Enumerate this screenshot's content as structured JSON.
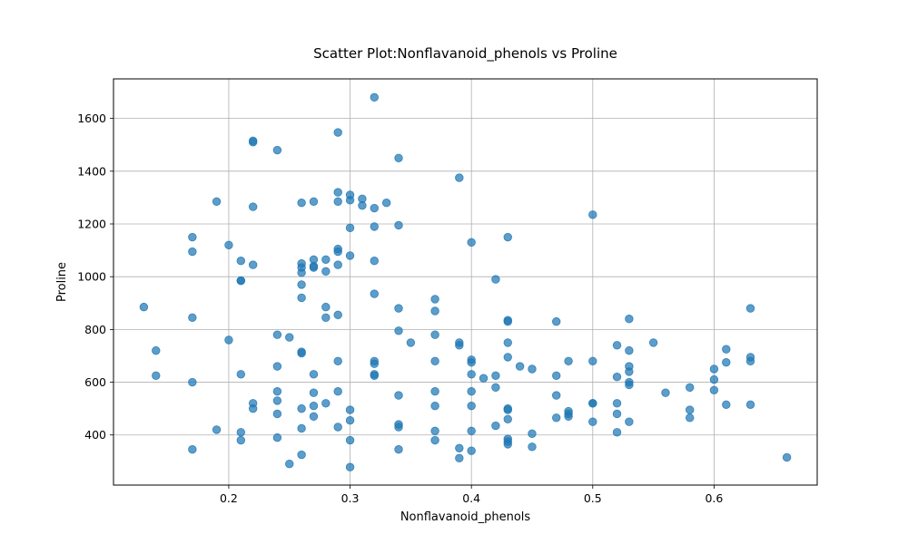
{
  "chart_data": {
    "type": "scatter",
    "title": "Scatter Plot:Nonflavanoid_phenols vs Proline",
    "xlabel": "Nonflavanoid_phenols",
    "ylabel": "Proline",
    "xlim": [
      0.105,
      0.685
    ],
    "ylim": [
      210,
      1750
    ],
    "xticks": [
      0.2,
      0.3,
      0.4,
      0.5,
      0.6
    ],
    "xtick_labels": [
      "0.2",
      "0.3",
      "0.4",
      "0.5",
      "0.6"
    ],
    "yticks": [
      400,
      600,
      800,
      1000,
      1200,
      1400,
      1600
    ],
    "ytick_labels": [
      "400",
      "600",
      "800",
      "1000",
      "1200",
      "1400",
      "1600"
    ],
    "grid": true,
    "point_color": "#1f77b4",
    "points": [
      [
        0.32,
        1680
      ],
      [
        0.22,
        1515
      ],
      [
        0.22,
        1510
      ],
      [
        0.24,
        1480
      ],
      [
        0.29,
        1547
      ],
      [
        0.34,
        1450
      ],
      [
        0.39,
        1375
      ],
      [
        0.19,
        1285
      ],
      [
        0.22,
        1265
      ],
      [
        0.26,
        1280
      ],
      [
        0.27,
        1285
      ],
      [
        0.29,
        1320
      ],
      [
        0.29,
        1285
      ],
      [
        0.3,
        1310
      ],
      [
        0.3,
        1290
      ],
      [
        0.31,
        1295
      ],
      [
        0.31,
        1270
      ],
      [
        0.32,
        1260
      ],
      [
        0.33,
        1280
      ],
      [
        0.5,
        1235
      ],
      [
        0.3,
        1185
      ],
      [
        0.32,
        1190
      ],
      [
        0.34,
        1195
      ],
      [
        0.17,
        1150
      ],
      [
        0.2,
        1120
      ],
      [
        0.17,
        1095
      ],
      [
        0.43,
        1150
      ],
      [
        0.4,
        1130
      ],
      [
        0.21,
        1060
      ],
      [
        0.22,
        1045
      ],
      [
        0.26,
        1050
      ],
      [
        0.26,
        1035
      ],
      [
        0.26,
        1015
      ],
      [
        0.27,
        1065
      ],
      [
        0.27,
        1040
      ],
      [
        0.27,
        1035
      ],
      [
        0.28,
        1065
      ],
      [
        0.28,
        1020
      ],
      [
        0.29,
        1105
      ],
      [
        0.29,
        1095
      ],
      [
        0.29,
        1045
      ],
      [
        0.3,
        1080
      ],
      [
        0.32,
        1060
      ],
      [
        0.21,
        985
      ],
      [
        0.21,
        985
      ],
      [
        0.42,
        990
      ],
      [
        0.26,
        970
      ],
      [
        0.26,
        920
      ],
      [
        0.32,
        935
      ],
      [
        0.37,
        915
      ],
      [
        0.13,
        885
      ],
      [
        0.17,
        845
      ],
      [
        0.28,
        885
      ],
      [
        0.28,
        845
      ],
      [
        0.29,
        855
      ],
      [
        0.34,
        880
      ],
      [
        0.37,
        870
      ],
      [
        0.43,
        835
      ],
      [
        0.43,
        830
      ],
      [
        0.47,
        830
      ],
      [
        0.53,
        840
      ],
      [
        0.63,
        880
      ],
      [
        0.14,
        720
      ],
      [
        0.2,
        760
      ],
      [
        0.24,
        780
      ],
      [
        0.25,
        770
      ],
      [
        0.26,
        715
      ],
      [
        0.26,
        710
      ],
      [
        0.34,
        795
      ],
      [
        0.35,
        750
      ],
      [
        0.37,
        780
      ],
      [
        0.39,
        750
      ],
      [
        0.39,
        740
      ],
      [
        0.43,
        750
      ],
      [
        0.52,
        740
      ],
      [
        0.53,
        720
      ],
      [
        0.55,
        750
      ],
      [
        0.61,
        725
      ],
      [
        0.14,
        625
      ],
      [
        0.17,
        600
      ],
      [
        0.21,
        630
      ],
      [
        0.24,
        660
      ],
      [
        0.27,
        630
      ],
      [
        0.29,
        680
      ],
      [
        0.32,
        680
      ],
      [
        0.32,
        670
      ],
      [
        0.32,
        630
      ],
      [
        0.32,
        625
      ],
      [
        0.37,
        680
      ],
      [
        0.4,
        685
      ],
      [
        0.4,
        675
      ],
      [
        0.4,
        630
      ],
      [
        0.41,
        615
      ],
      [
        0.42,
        625
      ],
      [
        0.43,
        695
      ],
      [
        0.44,
        660
      ],
      [
        0.45,
        650
      ],
      [
        0.47,
        625
      ],
      [
        0.48,
        680
      ],
      [
        0.5,
        680
      ],
      [
        0.52,
        620
      ],
      [
        0.53,
        660
      ],
      [
        0.53,
        640
      ],
      [
        0.53,
        600
      ],
      [
        0.53,
        590
      ],
      [
        0.56,
        560
      ],
      [
        0.58,
        580
      ],
      [
        0.6,
        650
      ],
      [
        0.6,
        610
      ],
      [
        0.6,
        570
      ],
      [
        0.61,
        675
      ],
      [
        0.63,
        695
      ],
      [
        0.63,
        680
      ],
      [
        0.22,
        520
      ],
      [
        0.22,
        500
      ],
      [
        0.24,
        565
      ],
      [
        0.24,
        530
      ],
      [
        0.24,
        480
      ],
      [
        0.26,
        500
      ],
      [
        0.27,
        560
      ],
      [
        0.27,
        510
      ],
      [
        0.27,
        470
      ],
      [
        0.28,
        520
      ],
      [
        0.29,
        565
      ],
      [
        0.3,
        495
      ],
      [
        0.3,
        455
      ],
      [
        0.34,
        550
      ],
      [
        0.37,
        565
      ],
      [
        0.37,
        510
      ],
      [
        0.4,
        565
      ],
      [
        0.4,
        510
      ],
      [
        0.42,
        580
      ],
      [
        0.43,
        500
      ],
      [
        0.43,
        495
      ],
      [
        0.43,
        460
      ],
      [
        0.47,
        550
      ],
      [
        0.47,
        465
      ],
      [
        0.48,
        490
      ],
      [
        0.48,
        480
      ],
      [
        0.48,
        470
      ],
      [
        0.5,
        520
      ],
      [
        0.5,
        520
      ],
      [
        0.5,
        450
      ],
      [
        0.52,
        520
      ],
      [
        0.52,
        480
      ],
      [
        0.53,
        450
      ],
      [
        0.58,
        495
      ],
      [
        0.58,
        465
      ],
      [
        0.61,
        515
      ],
      [
        0.63,
        515
      ],
      [
        0.17,
        345
      ],
      [
        0.19,
        420
      ],
      [
        0.21,
        410
      ],
      [
        0.21,
        380
      ],
      [
        0.24,
        390
      ],
      [
        0.25,
        290
      ],
      [
        0.26,
        425
      ],
      [
        0.26,
        325
      ],
      [
        0.29,
        430
      ],
      [
        0.3,
        380
      ],
      [
        0.3,
        278
      ],
      [
        0.34,
        440
      ],
      [
        0.34,
        430
      ],
      [
        0.34,
        345
      ],
      [
        0.37,
        415
      ],
      [
        0.37,
        380
      ],
      [
        0.39,
        350
      ],
      [
        0.39,
        312
      ],
      [
        0.4,
        415
      ],
      [
        0.4,
        340
      ],
      [
        0.42,
        435
      ],
      [
        0.43,
        385
      ],
      [
        0.43,
        375
      ],
      [
        0.43,
        365
      ],
      [
        0.45,
        405
      ],
      [
        0.45,
        355
      ],
      [
        0.52,
        410
      ],
      [
        0.66,
        315
      ]
    ]
  }
}
